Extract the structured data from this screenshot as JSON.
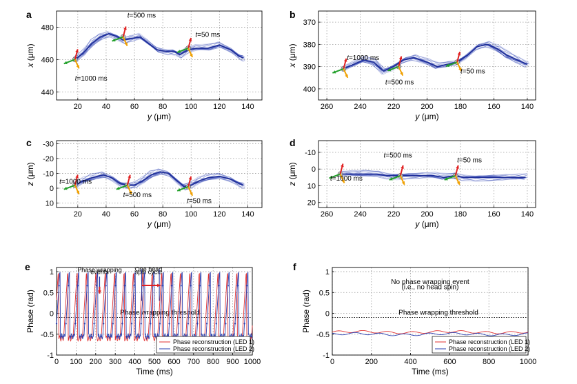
{
  "panels": [
    {
      "id": "a",
      "label": "a"
    },
    {
      "id": "b",
      "label": "b"
    },
    {
      "id": "c",
      "label": "c"
    },
    {
      "id": "d",
      "label": "d"
    },
    {
      "id": "e",
      "label": "e"
    },
    {
      "id": "f",
      "label": "f"
    }
  ],
  "chart_data": [
    {
      "id": "a",
      "type": "line",
      "xlabel": "y (μm)",
      "ylabel": "x (μm)",
      "xlim": [
        5,
        150
      ],
      "ylim": [
        435,
        490
      ],
      "y_inverted": false,
      "xticks": [
        20,
        40,
        60,
        80,
        100,
        120,
        140
      ],
      "yticks": [
        440,
        460,
        480
      ],
      "grid": true,
      "annotations": [
        {
          "text": "t=500 ms",
          "x": 55,
          "y": 486
        },
        {
          "text": "t=50 ms",
          "x": 103,
          "y": 474
        },
        {
          "text": "t=1000 ms",
          "x": 18,
          "y": 447
        }
      ],
      "trace": [
        [
          18,
          460
        ],
        [
          24,
          464
        ],
        [
          30,
          470
        ],
        [
          36,
          474
        ],
        [
          42,
          476
        ],
        [
          48,
          474
        ],
        [
          52,
          472
        ],
        [
          58,
          473
        ],
        [
          64,
          474
        ],
        [
          70,
          470
        ],
        [
          76,
          466
        ],
        [
          82,
          465
        ],
        [
          88,
          465
        ],
        [
          92,
          463
        ],
        [
          98,
          466
        ],
        [
          104,
          467
        ],
        [
          112,
          467
        ],
        [
          120,
          469
        ],
        [
          128,
          466
        ],
        [
          134,
          462
        ],
        [
          137,
          461
        ]
      ],
      "markers": [
        {
          "x": 18,
          "y": 460
        },
        {
          "x": 52,
          "y": 474
        },
        {
          "x": 98,
          "y": 467
        }
      ]
    },
    {
      "id": "b",
      "type": "line",
      "xlabel": "y (μm)",
      "ylabel": "x (μm)",
      "xlim": [
        265,
        135
      ],
      "ylim": [
        365,
        405
      ],
      "y_inverted": true,
      "xticks": [
        260,
        240,
        220,
        200,
        180,
        160,
        140
      ],
      "yticks": [
        370,
        380,
        390,
        400
      ],
      "grid": true,
      "annotations": [
        {
          "text": "t=1000 ms",
          "x": 248,
          "y": 387
        },
        {
          "text": "t=500 ms",
          "x": 225,
          "y": 398
        },
        {
          "text": "t=50 ms",
          "x": 180,
          "y": 393
        }
      ],
      "trace": [
        [
          250,
          391
        ],
        [
          244,
          389
        ],
        [
          238,
          387
        ],
        [
          232,
          388
        ],
        [
          226,
          392
        ],
        [
          220,
          390
        ],
        [
          214,
          387
        ],
        [
          208,
          386
        ],
        [
          200,
          388
        ],
        [
          194,
          390
        ],
        [
          188,
          389
        ],
        [
          182,
          388
        ],
        [
          176,
          385
        ],
        [
          170,
          381
        ],
        [
          164,
          380
        ],
        [
          158,
          382
        ],
        [
          152,
          385
        ],
        [
          146,
          387
        ],
        [
          140,
          389
        ]
      ],
      "markers": [
        {
          "x": 250,
          "y": 391
        },
        {
          "x": 217,
          "y": 390
        },
        {
          "x": 182,
          "y": 388
        }
      ]
    },
    {
      "id": "c",
      "type": "line",
      "xlabel": "y (μm)",
      "ylabel": "z (μm)",
      "xlim": [
        5,
        150
      ],
      "ylim": [
        -32,
        13
      ],
      "y_inverted": true,
      "xticks": [
        20,
        40,
        60,
        80,
        100,
        120,
        140
      ],
      "yticks": [
        -30,
        -20,
        -10,
        0,
        10
      ],
      "grid": true,
      "annotations": [
        {
          "text": "t=1000 ms",
          "x": 7,
          "y": -3
        },
        {
          "text": "t=500 ms",
          "x": 52,
          "y": 6
        },
        {
          "text": "t=50 ms",
          "x": 97,
          "y": 10
        }
      ],
      "trace": [
        [
          18,
          -2
        ],
        [
          24,
          -5
        ],
        [
          30,
          -7
        ],
        [
          38,
          -9
        ],
        [
          44,
          -7
        ],
        [
          50,
          -3
        ],
        [
          55,
          -2
        ],
        [
          60,
          -2
        ],
        [
          66,
          -5
        ],
        [
          72,
          -9
        ],
        [
          78,
          -11
        ],
        [
          84,
          -10
        ],
        [
          90,
          -5
        ],
        [
          95,
          -1
        ],
        [
          100,
          -2
        ],
        [
          106,
          -5
        ],
        [
          112,
          -7
        ],
        [
          120,
          -8
        ],
        [
          128,
          -6
        ],
        [
          134,
          -3
        ],
        [
          137,
          -2
        ]
      ],
      "markers": [
        {
          "x": 18,
          "y": -2
        },
        {
          "x": 55,
          "y": -2
        },
        {
          "x": 98,
          "y": -1
        }
      ]
    },
    {
      "id": "d",
      "type": "line",
      "xlabel": "y (μm)",
      "ylabel": "z (μm)",
      "xlim": [
        265,
        135
      ],
      "ylim": [
        -17,
        23
      ],
      "y_inverted": true,
      "xticks": [
        260,
        240,
        220,
        200,
        180,
        160,
        140
      ],
      "yticks": [
        -10,
        0,
        10,
        20
      ],
      "grid": true,
      "annotations": [
        {
          "text": "t=500 ms",
          "x": 226,
          "y": -7
        },
        {
          "text": "t=50 ms",
          "x": 182,
          "y": -4
        },
        {
          "text": "t=1000 ms",
          "x": 258,
          "y": 7
        }
      ],
      "trace": [
        [
          252,
          3
        ],
        [
          245,
          3
        ],
        [
          238,
          3
        ],
        [
          230,
          3
        ],
        [
          224,
          4
        ],
        [
          218,
          4
        ],
        [
          212,
          4
        ],
        [
          204,
          4
        ],
        [
          196,
          4
        ],
        [
          190,
          5
        ],
        [
          184,
          4
        ],
        [
          178,
          5
        ],
        [
          170,
          5
        ],
        [
          162,
          5
        ],
        [
          154,
          5
        ],
        [
          146,
          5
        ],
        [
          141,
          5
        ]
      ],
      "markers": [
        {
          "x": 252,
          "y": 3
        },
        {
          "x": 216,
          "y": 4
        },
        {
          "x": 183,
          "y": 4
        }
      ]
    },
    {
      "id": "e",
      "type": "line",
      "xlabel": "Time (ms)",
      "ylabel": "Phase (rad)",
      "xlim": [
        0,
        1000
      ],
      "ylim": [
        -1,
        1.1
      ],
      "xticks": [
        0,
        100,
        200,
        300,
        400,
        500,
        600,
        700,
        800,
        900,
        1000
      ],
      "yticks": [
        -1,
        -0.5,
        0,
        0.5,
        1
      ],
      "grid": true,
      "threshold": {
        "y": -0.1,
        "label": "Phase wrapping threshold"
      },
      "annotations": [
        {
          "text": "Phase wrapping",
          "x": 220,
          "y": 0.995
        },
        {
          "text": "events",
          "x": 220,
          "y": 0.94
        },
        {
          "text": "One head",
          "x": 470,
          "y": 1.005
        },
        {
          "text": "spin cycle",
          "x": 470,
          "y": 0.945
        }
      ],
      "legend_position": "bottom-right",
      "series": [
        {
          "name": "Phase reconstruction (LED 1)",
          "color": "#e03030",
          "period": 48,
          "phase": 12,
          "high": 0.95,
          "low": -0.6
        },
        {
          "name": "Phase reconstruction (LED 2)",
          "color": "#2a3fb0",
          "period": 48,
          "phase": 4,
          "high": 0.98,
          "low": -0.55
        }
      ]
    },
    {
      "id": "f",
      "type": "line",
      "xlabel": "Time (ms)",
      "ylabel": "Phase (rad)",
      "xlim": [
        0,
        1000
      ],
      "ylim": [
        -1,
        1.1
      ],
      "xticks": [
        0,
        200,
        400,
        600,
        800,
        1000
      ],
      "yticks": [
        -1,
        -0.5,
        0,
        0.5,
        1
      ],
      "grid": true,
      "threshold": {
        "y": -0.1,
        "label": "Phase wrapping threshold"
      },
      "annotations": [
        {
          "text": "No phase wrapping event",
          "x": 500,
          "y": 0.7
        },
        {
          "text": "(i.e., no head spin)",
          "x": 500,
          "y": 0.58
        }
      ],
      "legend_position": "bottom-right",
      "series": [
        {
          "name": "Phase reconstruction (LED 1)",
          "color": "#e03030",
          "level": -0.45
        },
        {
          "name": "Phase reconstruction (LED 2)",
          "color": "#2a3fb0",
          "level": -0.5
        }
      ]
    }
  ]
}
